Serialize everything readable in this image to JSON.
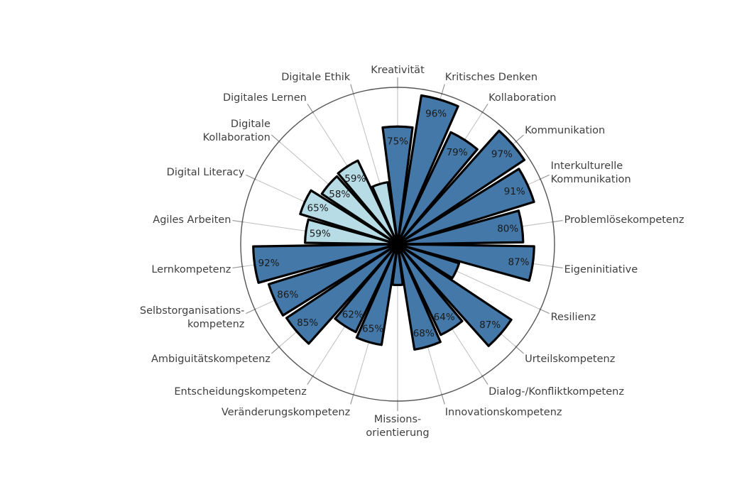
{
  "chart_data": {
    "type": "bar",
    "subtype": "polar-rose-barpolar",
    "title": "",
    "units": "%",
    "radial_range": [
      0,
      100
    ],
    "angular_start": "top",
    "direction": "clockwise",
    "grid": "radial-spokes-with-outer-circle",
    "legend": "none",
    "color_groups": {
      "core": "#4478A8",
      "digital": "#B8DCE6"
    },
    "style": {
      "border_color": "#000000",
      "spoke_color": "#BEBEBE",
      "tick_color": "#969696",
      "axis_circle_color": "#555555",
      "label_color": "#3F3F3F",
      "value_text_color": "#1A1A1A",
      "background": "#FFFFFF"
    },
    "categories": [
      {
        "id": "kreativitaet",
        "label": "Kreativität",
        "lines": [
          "Kreativität"
        ],
        "value": 75,
        "value_label": "75%",
        "group": "core",
        "estimated": false
      },
      {
        "id": "kritisches-denken",
        "label": "Kritisches Denken",
        "lines": [
          "Kritisches Denken"
        ],
        "value": 96,
        "value_label": "96%",
        "group": "core",
        "estimated": false
      },
      {
        "id": "kollaboration",
        "label": "Kollaboration",
        "lines": [
          "Kollaboration"
        ],
        "value": 79,
        "value_label": "79%",
        "group": "core",
        "estimated": false
      },
      {
        "id": "kommunikation",
        "label": "Kommunikation",
        "lines": [
          "Kommunikation"
        ],
        "value": 97,
        "value_label": "97%",
        "group": "core",
        "estimated": false
      },
      {
        "id": "interkulturelle-kommunikation",
        "label": "Interkulturelle Kommunikation",
        "lines": [
          "Interkulturelle",
          "Kommunikation"
        ],
        "value": 91,
        "value_label": "91%",
        "group": "core",
        "estimated": false
      },
      {
        "id": "problemloesekompetenz",
        "label": "Problemlösekompetenz",
        "lines": [
          "Problemlösekompetenz"
        ],
        "value": 80,
        "value_label": "80%",
        "group": "core",
        "estimated": false
      },
      {
        "id": "eigeninitiative",
        "label": "Eigeninitiative",
        "lines": [
          "Eigeninitiative"
        ],
        "value": 87,
        "value_label": "87%",
        "group": "core",
        "estimated": false
      },
      {
        "id": "resilienz",
        "label": "Resilienz",
        "lines": [
          "Resilienz"
        ],
        "value": 41,
        "value_label": "",
        "group": "core",
        "estimated": true
      },
      {
        "id": "urteilskompetenz",
        "label": "Urteilskompetenz",
        "lines": [
          "Urteilskompetenz"
        ],
        "value": 87,
        "value_label": "87%",
        "group": "core",
        "estimated": false
      },
      {
        "id": "dialog-konfliktkompetenz",
        "label": "Dialog-/Konfliktkompetenz",
        "lines": [
          "Dialog-/Konfliktkompetenz"
        ],
        "value": 64,
        "value_label": "64%",
        "group": "core",
        "estimated": false
      },
      {
        "id": "innovationskompetenz",
        "label": "Innovationskompetenz",
        "lines": [
          "Innovationskompetenz"
        ],
        "value": 68,
        "value_label": "68%",
        "group": "core",
        "estimated": false
      },
      {
        "id": "missionsorientierung",
        "label": "Missionsorientierung",
        "lines": [
          "Missions-",
          "orientierung"
        ],
        "value": 26,
        "value_label": "",
        "group": "core",
        "estimated": true
      },
      {
        "id": "veraenderungskompetenz",
        "label": "Veränderungskompetenz",
        "lines": [
          "Veränderungskompetenz"
        ],
        "value": 65,
        "value_label": "65%",
        "group": "core",
        "estimated": false
      },
      {
        "id": "entscheidungskompetenz",
        "label": "Entscheidungskompetenz",
        "lines": [
          "Entscheidungskompetenz"
        ],
        "value": 62,
        "value_label": "62%",
        "group": "core",
        "estimated": false
      },
      {
        "id": "ambiguitaetskompetenz",
        "label": "Ambiguitätskompetenz",
        "lines": [
          "Ambiguitätskompetenz"
        ],
        "value": 85,
        "value_label": "85%",
        "group": "core",
        "estimated": false
      },
      {
        "id": "selbstorganisationskompetenz",
        "label": "Selbstorganisations­kompetenz",
        "lines": [
          "Selbstorganisations-",
          "kompetenz"
        ],
        "value": 86,
        "value_label": "86%",
        "group": "core",
        "estimated": false
      },
      {
        "id": "lernkompetenz",
        "label": "Lernkompetenz",
        "lines": [
          "Lernkompetenz"
        ],
        "value": 92,
        "value_label": "92%",
        "group": "core",
        "estimated": false
      },
      {
        "id": "agiles-arbeiten",
        "label": "Agiles Arbeiten",
        "lines": [
          "Agiles Arbeiten"
        ],
        "value": 59,
        "value_label": "59%",
        "group": "digital",
        "estimated": false
      },
      {
        "id": "digital-literacy",
        "label": "Digital Literacy",
        "lines": [
          "Digital Literacy"
        ],
        "value": 65,
        "value_label": "65%",
        "group": "digital",
        "estimated": false
      },
      {
        "id": "digitale-kollaboration",
        "label": "Digitale Kollaboration",
        "lines": [
          "Digitale",
          "Kollaboration"
        ],
        "value": 58,
        "value_label": "58%",
        "group": "digital",
        "estimated": false
      },
      {
        "id": "digitales-lernen",
        "label": "Digitales Lernen",
        "lines": [
          "Digitales Lernen"
        ],
        "value": 59,
        "value_label": "59%",
        "group": "digital",
        "estimated": false
      },
      {
        "id": "digitale-ethik",
        "label": "Digitale Ethik",
        "lines": [
          "Digitale Ethik"
        ],
        "value": 40,
        "value_label": "",
        "group": "digital",
        "estimated": true
      }
    ]
  }
}
